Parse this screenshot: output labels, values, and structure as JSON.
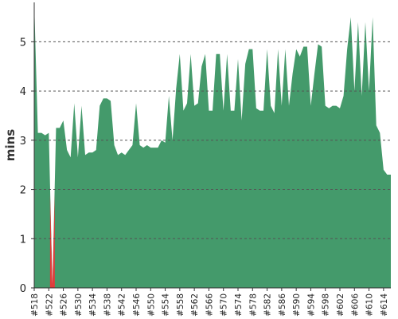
{
  "chart_data": {
    "type": "area",
    "ylabel": "mins",
    "ylim": [
      0,
      5.8
    ],
    "yticks": [
      "0",
      "1",
      "2",
      "3",
      "4",
      "5"
    ],
    "grid": true,
    "colors": {
      "normal": "#449a6b",
      "failed": "#e03c3c",
      "grid": "#555555"
    },
    "tick_labels": [
      "#518",
      "#522",
      "#526",
      "#530",
      "#534",
      "#538",
      "#542",
      "#546",
      "#550",
      "#554",
      "#558",
      "#562",
      "#566",
      "#570",
      "#574",
      "#578",
      "#582",
      "#586",
      "#590",
      "#594",
      "#598",
      "#602",
      "#606",
      "#610",
      "#614"
    ],
    "x": [
      "#518",
      "#519",
      "#520",
      "#521",
      "#522",
      "#523",
      "#524",
      "#525",
      "#526",
      "#527",
      "#528",
      "#529",
      "#530",
      "#531",
      "#532",
      "#533",
      "#534",
      "#535",
      "#536",
      "#537",
      "#538",
      "#539",
      "#540",
      "#541",
      "#542",
      "#543",
      "#544",
      "#545",
      "#546",
      "#547",
      "#548",
      "#549",
      "#550",
      "#551",
      "#552",
      "#553",
      "#554",
      "#555",
      "#556",
      "#557",
      "#558",
      "#559",
      "#560",
      "#561",
      "#562",
      "#563",
      "#564",
      "#565",
      "#566",
      "#567",
      "#568",
      "#569",
      "#570",
      "#571",
      "#572",
      "#573",
      "#574",
      "#575",
      "#576",
      "#577",
      "#578",
      "#579",
      "#580",
      "#581",
      "#582",
      "#583",
      "#584",
      "#585",
      "#586",
      "#587",
      "#588",
      "#589",
      "#590",
      "#591",
      "#592",
      "#593",
      "#594",
      "#595",
      "#596",
      "#597",
      "#598",
      "#599",
      "#600",
      "#601",
      "#602",
      "#603",
      "#604",
      "#605",
      "#606",
      "#607",
      "#608",
      "#609",
      "#610",
      "#611",
      "#612",
      "#613",
      "#614",
      "#615",
      "#616"
    ],
    "series": [
      {
        "values": [
          5.8,
          3.15,
          3.15,
          3.1,
          3.15,
          0.05,
          3.25,
          3.25,
          3.4,
          2.8,
          2.65,
          3.75,
          2.65,
          3.7,
          2.7,
          2.75,
          2.75,
          2.8,
          3.7,
          3.85,
          3.85,
          3.8,
          2.9,
          2.7,
          2.75,
          2.7,
          2.8,
          2.9,
          3.75,
          2.9,
          2.85,
          2.9,
          2.85,
          2.85,
          2.85,
          3.0,
          2.95,
          3.9,
          3.0,
          4.05,
          4.75,
          3.6,
          3.75,
          4.75,
          3.7,
          3.75,
          4.5,
          4.75,
          3.6,
          3.6,
          4.75,
          4.75,
          3.6,
          4.75,
          3.6,
          3.6,
          4.65,
          3.4,
          4.55,
          4.85,
          4.85,
          3.65,
          3.6,
          3.6,
          4.85,
          3.7,
          3.55,
          4.85,
          3.7,
          4.85,
          3.7,
          4.35,
          4.85,
          4.7,
          4.9,
          4.9,
          3.7,
          4.35,
          4.95,
          4.9,
          3.7,
          3.65,
          3.7,
          3.7,
          3.65,
          3.9,
          4.85,
          5.5,
          4.0,
          5.4,
          3.9,
          5.4,
          4.0,
          5.5,
          3.3,
          3.15,
          2.4,
          2.3,
          2.3
        ],
        "failed_index": 5
      }
    ]
  }
}
